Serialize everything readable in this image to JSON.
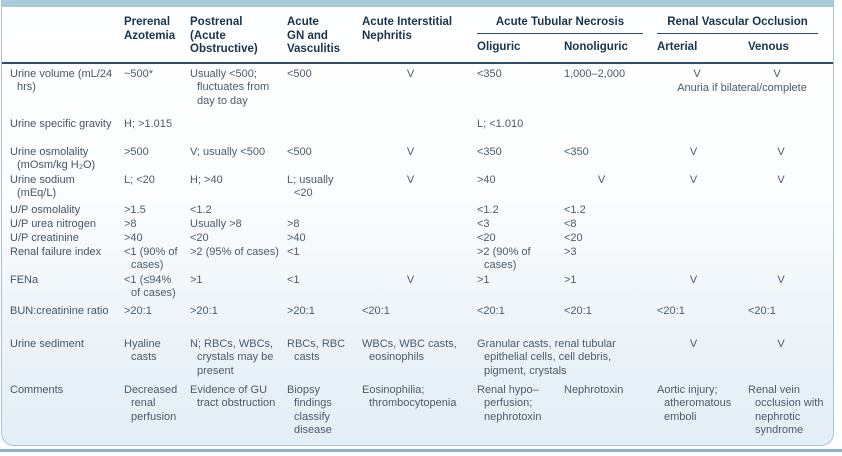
{
  "theme": {
    "band_color": "#a9ccd8",
    "border_color": "#a7c3dc",
    "rule_color": "#2d4e66",
    "body_text_color": "#4a5b6d",
    "header_text_color": "#17344e",
    "bottom_rule_color": "#8db3d3"
  },
  "table": {
    "header": {
      "plain_columns": [
        {
          "name": "row-label",
          "label": ""
        },
        {
          "name": "prerenal-azotemia",
          "label": "Prerenal\nAzotemia"
        },
        {
          "name": "postrenal",
          "label": "Postrenal\n(Acute\nObstructive)"
        },
        {
          "name": "acute-gn-vasculitis",
          "label": "Acute\nGN and\nVasculitis"
        },
        {
          "name": "acute-interstitial-nephritis",
          "label": "Acute Interstitial\nNephritis"
        }
      ],
      "groups": [
        {
          "name": "acute-tubular-necrosis",
          "label": "Acute Tubular Necrosis",
          "subs": [
            "Oliguric",
            "Nonoliguric"
          ]
        },
        {
          "name": "renal-vascular-occlusion",
          "label": "Renal Vascular Occlusion",
          "subs": [
            "Arterial",
            "Venous"
          ]
        }
      ]
    },
    "rows": [
      {
        "label": "Urine volume (mL/24 hrs)",
        "cells": [
          "~500*",
          "Usually <500; fluctuates from day to day",
          "<500",
          {
            "v": "V",
            "c": 1
          },
          "<350",
          "1,000–2,000",
          {
            "span": 2,
            "pair": [
              "V",
              "V"
            ],
            "note": "Anuria if bilateral/complete"
          }
        ]
      },
      {
        "label": "Urine specific gravity",
        "cells": [
          "H; >1.015",
          null,
          null,
          null,
          "L; <1.010",
          null,
          null,
          null
        ]
      },
      {
        "label": "Urine osmolality (mOsm/kg H₂O)",
        "cells": [
          ">500",
          "V; usually <500",
          "<500",
          {
            "v": "V",
            "c": 1
          },
          "<350",
          "<350",
          {
            "v": "V",
            "c": 1
          },
          {
            "v": "V",
            "c": 1
          }
        ]
      },
      {
        "label": "Urine sodium (mEq/L)",
        "cells": [
          "L; <20",
          "H; >40",
          "L; usually <20",
          {
            "v": "V",
            "c": 1
          },
          ">40",
          {
            "v": "V",
            "c": 1
          },
          {
            "v": "V",
            "c": 1
          },
          {
            "v": "V",
            "c": 1
          }
        ]
      },
      {
        "label": "U/P osmolality",
        "cells": [
          ">1.5",
          "<1.2",
          null,
          null,
          "<1.2",
          "<1.2",
          null,
          null
        ]
      },
      {
        "label": "U/P urea nitrogen",
        "cells": [
          ">8",
          "Usually >8",
          ">8",
          null,
          "<3",
          "<8",
          null,
          null
        ]
      },
      {
        "label": "U/P creatinine",
        "cells": [
          ">40",
          "<20",
          ">40",
          null,
          "<20",
          "<20",
          null,
          null
        ]
      },
      {
        "label": "Renal failure index",
        "cells": [
          "<1 (90% of cases)",
          ">2 (95% of cases)",
          "<1",
          null,
          ">2 (90% of cases)",
          ">3",
          null,
          null
        ]
      },
      {
        "label": "FENa",
        "cells": [
          "<1 (≤94% of cases)",
          ">1",
          "<1",
          {
            "v": "V",
            "c": 1
          },
          ">1",
          ">1",
          {
            "v": "V",
            "c": 1
          },
          {
            "v": "V",
            "c": 1
          }
        ]
      },
      {
        "label": "BUN:creatinine ratio",
        "cells": [
          ">20:1",
          ">20:1",
          ">20:1",
          "<20:1",
          "<20:1",
          "<20:1",
          "<20:1",
          "<20:1"
        ]
      },
      {
        "label": "Urine sediment",
        "cells": [
          "Hyaline casts",
          "N; RBCs, WBCs, crystals may be present",
          "RBCs, RBC casts",
          "WBCs, WBC casts, eosinophils",
          {
            "span": 2,
            "v": "Granular casts, renal tubular epithelial cells, cell debris, pigment, crystals"
          },
          {
            "v": "V",
            "c": 1
          },
          {
            "v": "V",
            "c": 1
          }
        ]
      },
      {
        "label": "Comments",
        "cells": [
          "Decreased renal perfusion",
          "Evidence of GU tract obstruction",
          "Biopsy findings classify disease",
          "Eosinophilia; thrombocytopenia",
          "Renal hypo–perfusion; nephrotoxin",
          "Nephrotoxin",
          "Aortic injury; atheromatous emboli",
          "Renal vein occlusion with nephrotic syndrome"
        ]
      }
    ]
  }
}
